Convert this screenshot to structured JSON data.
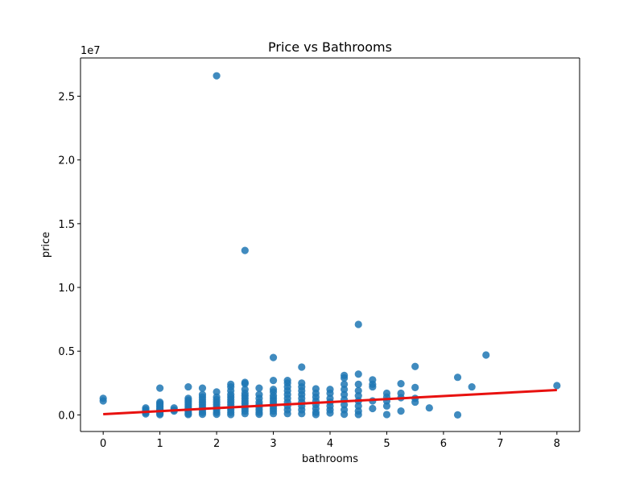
{
  "chart_data": {
    "type": "scatter",
    "title": "Price vs Bathrooms",
    "xlabel": "bathrooms",
    "ylabel": "price",
    "y_offset_label": "1e7",
    "xlim": [
      -0.4,
      8.4
    ],
    "ylim": [
      -1300000,
      28000000
    ],
    "xticks": [
      0,
      1,
      2,
      3,
      4,
      5,
      6,
      7,
      8
    ],
    "xtick_labels": [
      "0",
      "1",
      "2",
      "3",
      "4",
      "5",
      "6",
      "7",
      "8"
    ],
    "yticks": [
      0,
      5000000,
      10000000,
      15000000,
      20000000,
      25000000
    ],
    "ytick_labels": [
      "0.0",
      "0.5",
      "1.0",
      "1.5",
      "2.0",
      "2.5"
    ],
    "grid": false,
    "point_color": "#1f77b4",
    "regression_color": "#e8110f",
    "regression_line": {
      "x": [
        0,
        8
      ],
      "y": [
        60000,
        1950000
      ]
    },
    "series": [
      {
        "points": [
          [
            0,
            1300000
          ],
          [
            0,
            1100000
          ],
          [
            0.75,
            550000
          ],
          [
            0.75,
            420000
          ],
          [
            0.75,
            300000
          ],
          [
            0.75,
            180000
          ],
          [
            0.75,
            80000
          ],
          [
            1,
            2100000
          ],
          [
            1,
            1000000
          ],
          [
            1,
            900000
          ],
          [
            1,
            800000
          ],
          [
            1,
            700000
          ],
          [
            1,
            600000
          ],
          [
            1,
            500000
          ],
          [
            1,
            400000
          ],
          [
            1,
            300000
          ],
          [
            1,
            200000
          ],
          [
            1,
            100000
          ],
          [
            1,
            20000
          ],
          [
            1.25,
            550000
          ],
          [
            1.25,
            400000
          ],
          [
            1.25,
            300000
          ],
          [
            1.5,
            2200000
          ],
          [
            1.5,
            1300000
          ],
          [
            1.5,
            1150000
          ],
          [
            1.5,
            1000000
          ],
          [
            1.5,
            850000
          ],
          [
            1.5,
            700000
          ],
          [
            1.5,
            550000
          ],
          [
            1.5,
            400000
          ],
          [
            1.5,
            250000
          ],
          [
            1.5,
            100000
          ],
          [
            1.5,
            30000
          ],
          [
            1.75,
            2100000
          ],
          [
            1.75,
            1600000
          ],
          [
            1.75,
            1400000
          ],
          [
            1.75,
            1200000
          ],
          [
            1.75,
            1000000
          ],
          [
            1.75,
            800000
          ],
          [
            1.75,
            600000
          ],
          [
            1.75,
            400000
          ],
          [
            1.75,
            200000
          ],
          [
            1.75,
            50000
          ],
          [
            2,
            26600000
          ],
          [
            2,
            1800000
          ],
          [
            2,
            1400000
          ],
          [
            2,
            1200000
          ],
          [
            2,
            1000000
          ],
          [
            2,
            800000
          ],
          [
            2,
            600000
          ],
          [
            2,
            400000
          ],
          [
            2,
            200000
          ],
          [
            2,
            50000
          ],
          [
            2.25,
            2400000
          ],
          [
            2.25,
            2200000
          ],
          [
            2.25,
            1900000
          ],
          [
            2.25,
            1600000
          ],
          [
            2.25,
            1400000
          ],
          [
            2.25,
            1200000
          ],
          [
            2.25,
            1000000
          ],
          [
            2.25,
            800000
          ],
          [
            2.25,
            600000
          ],
          [
            2.25,
            400000
          ],
          [
            2.25,
            200000
          ],
          [
            2.25,
            30000
          ],
          [
            2.5,
            12900000
          ],
          [
            2.5,
            2550000
          ],
          [
            2.5,
            2450000
          ],
          [
            2.5,
            2000000
          ],
          [
            2.5,
            1700000
          ],
          [
            2.5,
            1500000
          ],
          [
            2.5,
            1300000
          ],
          [
            2.5,
            1100000
          ],
          [
            2.5,
            900000
          ],
          [
            2.5,
            700000
          ],
          [
            2.5,
            500000
          ],
          [
            2.5,
            300000
          ],
          [
            2.5,
            100000
          ],
          [
            2.75,
            2100000
          ],
          [
            2.75,
            1600000
          ],
          [
            2.75,
            1300000
          ],
          [
            2.75,
            1000000
          ],
          [
            2.75,
            800000
          ],
          [
            2.75,
            600000
          ],
          [
            2.75,
            400000
          ],
          [
            2.75,
            200000
          ],
          [
            2.75,
            50000
          ],
          [
            3,
            4500000
          ],
          [
            3,
            2700000
          ],
          [
            3,
            2000000
          ],
          [
            3,
            1800000
          ],
          [
            3,
            1500000
          ],
          [
            3,
            1300000
          ],
          [
            3,
            1100000
          ],
          [
            3,
            900000
          ],
          [
            3,
            700000
          ],
          [
            3,
            500000
          ],
          [
            3,
            300000
          ],
          [
            3,
            100000
          ],
          [
            3.25,
            2700000
          ],
          [
            3.25,
            2500000
          ],
          [
            3.25,
            2200000
          ],
          [
            3.25,
            1900000
          ],
          [
            3.25,
            1600000
          ],
          [
            3.25,
            1300000
          ],
          [
            3.25,
            1000000
          ],
          [
            3.25,
            700000
          ],
          [
            3.25,
            400000
          ],
          [
            3.25,
            100000
          ],
          [
            3.5,
            3750000
          ],
          [
            3.5,
            2500000
          ],
          [
            3.5,
            2200000
          ],
          [
            3.5,
            1900000
          ],
          [
            3.5,
            1600000
          ],
          [
            3.5,
            1300000
          ],
          [
            3.5,
            1000000
          ],
          [
            3.5,
            700000
          ],
          [
            3.5,
            400000
          ],
          [
            3.5,
            100000
          ],
          [
            3.75,
            2050000
          ],
          [
            3.75,
            1700000
          ],
          [
            3.75,
            1400000
          ],
          [
            3.75,
            1100000
          ],
          [
            3.75,
            800000
          ],
          [
            3.75,
            500000
          ],
          [
            3.75,
            200000
          ],
          [
            3.75,
            30000
          ],
          [
            4,
            2000000
          ],
          [
            4,
            1700000
          ],
          [
            4,
            1300000
          ],
          [
            4,
            1000000
          ],
          [
            4,
            700000
          ],
          [
            4,
            400000
          ],
          [
            4,
            150000
          ],
          [
            4.25,
            3100000
          ],
          [
            4.25,
            2900000
          ],
          [
            4.25,
            2400000
          ],
          [
            4.25,
            2000000
          ],
          [
            4.25,
            1600000
          ],
          [
            4.25,
            1200000
          ],
          [
            4.25,
            800000
          ],
          [
            4.25,
            400000
          ],
          [
            4.25,
            50000
          ],
          [
            4.5,
            7100000
          ],
          [
            4.5,
            3200000
          ],
          [
            4.5,
            2400000
          ],
          [
            4.5,
            1900000
          ],
          [
            4.5,
            1500000
          ],
          [
            4.5,
            1100000
          ],
          [
            4.5,
            700000
          ],
          [
            4.5,
            300000
          ],
          [
            4.5,
            30000
          ],
          [
            4.75,
            2750000
          ],
          [
            4.75,
            2400000
          ],
          [
            4.75,
            2200000
          ],
          [
            4.75,
            1100000
          ],
          [
            4.75,
            500000
          ],
          [
            5,
            1700000
          ],
          [
            5,
            1400000
          ],
          [
            5,
            1100000
          ],
          [
            5,
            700000
          ],
          [
            5,
            30000
          ],
          [
            5.25,
            2450000
          ],
          [
            5.25,
            1700000
          ],
          [
            5.25,
            1350000
          ],
          [
            5.25,
            300000
          ],
          [
            5.5,
            3800000
          ],
          [
            5.5,
            2150000
          ],
          [
            5.5,
            1300000
          ],
          [
            5.5,
            1000000
          ],
          [
            5.75,
            550000
          ],
          [
            6.25,
            2950000
          ],
          [
            6.25,
            0
          ],
          [
            6.5,
            2200000
          ],
          [
            6.75,
            4700000
          ],
          [
            8,
            2300000
          ]
        ]
      }
    ]
  }
}
